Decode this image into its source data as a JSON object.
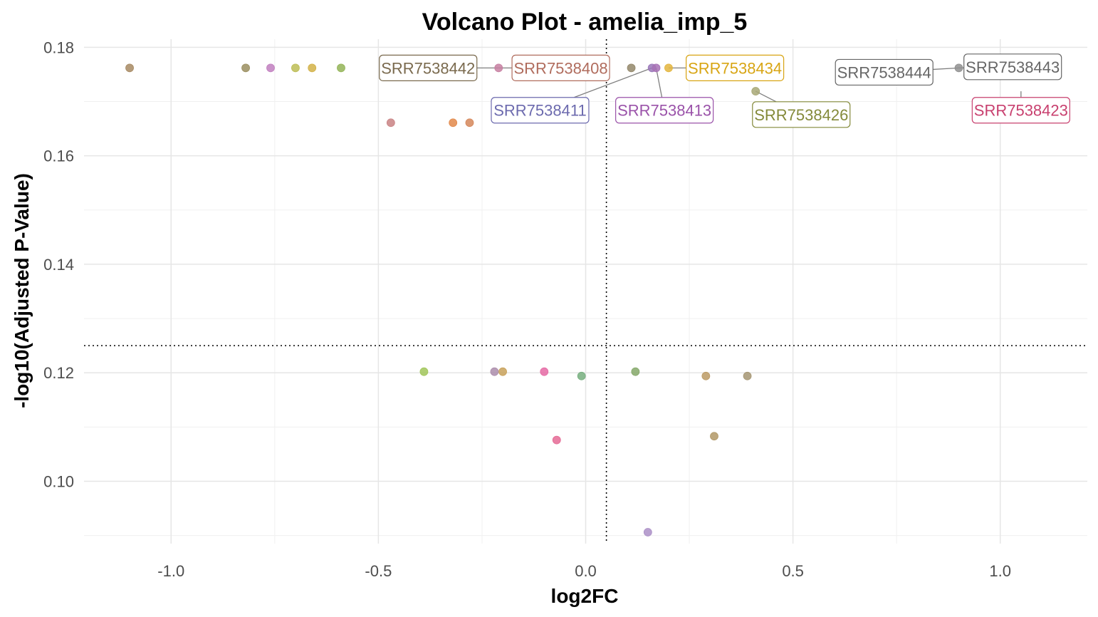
{
  "chart_data": {
    "type": "scatter",
    "title": "Volcano Plot - amelia_imp_5",
    "xlabel": "log2FC",
    "ylabel": "-log10(Adjusted P-Value)",
    "xlim": [
      -1.21,
      1.21
    ],
    "ylim": [
      0.0885,
      0.1815
    ],
    "x_ticks": [
      -1.0,
      -0.5,
      0.0,
      0.5,
      1.0
    ],
    "x_tick_labels": [
      "-1.0",
      "-0.5",
      "0.0",
      "0.5",
      "1.0"
    ],
    "y_ticks": [
      0.1,
      0.12,
      0.14,
      0.16,
      0.18
    ],
    "y_tick_labels": [
      "0.10",
      "0.12",
      "0.14",
      "0.16",
      "0.18"
    ],
    "grid": true,
    "threshold_x": 0.05,
    "threshold_y": 0.125,
    "points": [
      {
        "x": -1.1,
        "y": 0.1762,
        "color": "#a78a63"
      },
      {
        "x": -0.82,
        "y": 0.1762,
        "color": "#9a8e5f"
      },
      {
        "x": -0.76,
        "y": 0.1762,
        "color": "#c17fbf"
      },
      {
        "x": -0.7,
        "y": 0.1762,
        "color": "#bdbd55"
      },
      {
        "x": -0.66,
        "y": 0.1762,
        "color": "#d2b248"
      },
      {
        "x": -0.59,
        "y": 0.1762,
        "color": "#93b457"
      },
      {
        "x": -0.21,
        "y": 0.1762,
        "color": "#c77fa1"
      },
      {
        "x": 0.11,
        "y": 0.1762,
        "color": "#93876a"
      },
      {
        "x": 0.16,
        "y": 0.1762,
        "color": "#9a77b9"
      },
      {
        "x": 0.17,
        "y": 0.1762,
        "color": "#a771b5"
      },
      {
        "x": 0.2,
        "y": 0.1762,
        "color": "#e3b53e"
      },
      {
        "x": 0.9,
        "y": 0.1762,
        "color": "#8f8f8f"
      },
      {
        "x": 0.41,
        "y": 0.1719,
        "color": "#a8a875"
      },
      {
        "x": -0.47,
        "y": 0.1661,
        "color": "#c98384"
      },
      {
        "x": -0.32,
        "y": 0.1661,
        "color": "#e2884a"
      },
      {
        "x": -0.28,
        "y": 0.1661,
        "color": "#d5875b"
      },
      {
        "x": -0.39,
        "y": 0.1202,
        "color": "#a1c65a"
      },
      {
        "x": -0.22,
        "y": 0.1202,
        "color": "#ac8dac"
      },
      {
        "x": -0.2,
        "y": 0.1202,
        "color": "#c8a15a"
      },
      {
        "x": -0.1,
        "y": 0.1202,
        "color": "#e56aa4"
      },
      {
        "x": -0.01,
        "y": 0.1194,
        "color": "#75ae7e"
      },
      {
        "x": 0.12,
        "y": 0.1202,
        "color": "#85a86a"
      },
      {
        "x": 0.29,
        "y": 0.1194,
        "color": "#bb9a64"
      },
      {
        "x": 0.39,
        "y": 0.1194,
        "color": "#a59572"
      },
      {
        "x": -0.07,
        "y": 0.1076,
        "color": "#e56a95"
      },
      {
        "x": 0.31,
        "y": 0.1083,
        "color": "#b19866"
      },
      {
        "x": 0.15,
        "y": 0.0906,
        "color": "#ab8fc7"
      }
    ],
    "labels": [
      {
        "text": "SRR7538442",
        "color": "#7a6a4e",
        "x": -0.38,
        "y": 0.1762,
        "px": -0.21,
        "py": 0.1762
      },
      {
        "text": "SRR7538408",
        "color": "#b06c5d",
        "x": -0.06,
        "y": 0.1762,
        "px": -0.21,
        "py": 0.1762
      },
      {
        "text": "SRR7538434",
        "color": "#d8a514",
        "x": 0.36,
        "y": 0.1762,
        "px": 0.2,
        "py": 0.1762
      },
      {
        "text": "SRR7538411",
        "color": "#6c6aae",
        "x": -0.11,
        "y": 0.1684,
        "px": 0.16,
        "py": 0.1762
      },
      {
        "text": "SRR7538413",
        "color": "#9a52a9",
        "x": 0.19,
        "y": 0.1684,
        "px": 0.17,
        "py": 0.1762
      },
      {
        "text": "SRR7538426",
        "color": "#848a3a",
        "x": 0.52,
        "y": 0.1676,
        "px": 0.41,
        "py": 0.1719
      },
      {
        "text": "SRR7538444",
        "color": "#666666",
        "x": 0.72,
        "y": 0.1754,
        "px": 0.9,
        "py": 0.1762
      },
      {
        "text": "SRR7538443",
        "color": "#666666",
        "x": 1.03,
        "y": 0.1764,
        "px": 0.9,
        "py": 0.1762
      },
      {
        "text": "SRR7538423",
        "color": "#c8406f",
        "x": 1.05,
        "y": 0.1684,
        "px": 1.05,
        "py": 0.1719
      }
    ]
  }
}
